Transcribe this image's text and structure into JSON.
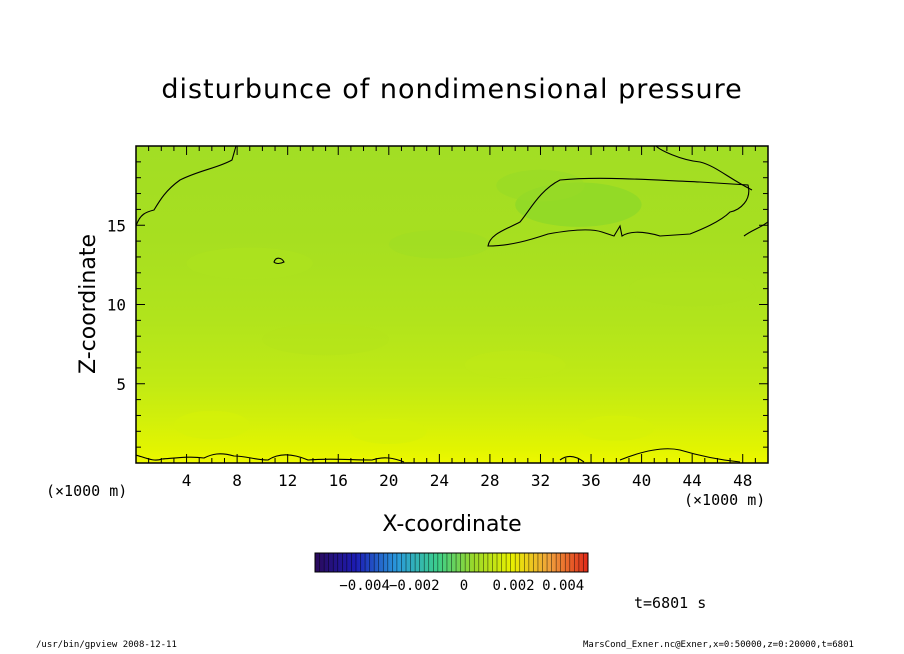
{
  "title": "disturbunce of nondimensional pressure",
  "chart_data": {
    "type": "heatmap",
    "title": "disturbunce of nondimensional pressure",
    "xlabel": "X-coordinate",
    "ylabel": "Z-coordinate",
    "x_units": "(×1000 m)",
    "y_units": "(×1000 m)",
    "xlim": [
      0,
      50
    ],
    "ylim": [
      0,
      20
    ],
    "x_ticks": [
      4,
      8,
      12,
      16,
      20,
      24,
      28,
      32,
      36,
      40,
      44,
      48
    ],
    "y_ticks": [
      5,
      10,
      15
    ],
    "colorbar": {
      "min": -0.006,
      "max": 0.005,
      "tick_values": [
        -0.004,
        -0.002,
        0,
        0.002,
        0.004
      ],
      "tick_labels": [
        "−0.004",
        "−0.002",
        "0",
        "0.002",
        "0.004"
      ]
    },
    "field_summary": {
      "z_rows": [
        0,
        0.5,
        1,
        2,
        3,
        5,
        8,
        12,
        15,
        17,
        20
      ],
      "values": [
        0.0026,
        0.0023,
        0.0019,
        0.0015,
        0.0012,
        0.0009,
        0.0006,
        0.0003,
        0.0001,
        -0.0001,
        0.0001
      ]
    },
    "contour_level": 0
  },
  "labels": {
    "x_units_left": "(×1000 m)",
    "x_units_right": "(×1000 m)",
    "time": "t=6801 s",
    "footer_left": "/usr/bin/gpview   2008-12-11",
    "footer_right": "MarsCond_Exner.nc@Exner,x=0:50000,z=0:20000,t=6801"
  },
  "colors": {
    "field_low": "#8fd62a",
    "field_high": "#e8f800",
    "contour": "#000000"
  }
}
